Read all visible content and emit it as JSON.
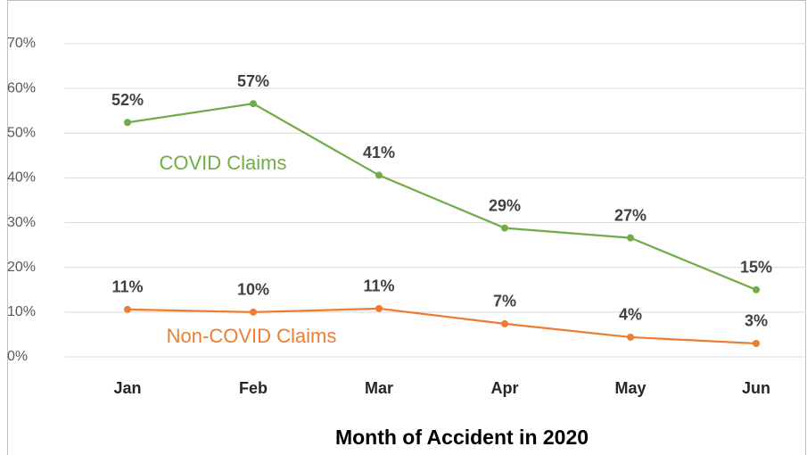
{
  "chart_data": {
    "type": "line",
    "x_label": "Month of Accident in 2020",
    "categories": [
      "Jan",
      "Feb",
      "Mar",
      "Apr",
      "May",
      "Jun"
    ],
    "series": [
      {
        "name": "COVID Claims",
        "color": "#70ad47",
        "values": [
          52.4,
          56.6,
          40.6,
          28.8,
          26.6,
          15
        ],
        "value_labels": [
          "52%",
          "57%",
          "41%",
          "29%",
          "27%",
          "15%"
        ]
      },
      {
        "name": "Non-COVID Claims",
        "color": "#ed7d31",
        "values": [
          10.6,
          10,
          10.8,
          7.4,
          4.4,
          3
        ],
        "value_labels": [
          "11%",
          "10%",
          "11%",
          "7%",
          "4%",
          "3%"
        ]
      }
    ],
    "ylim": [
      0,
      70
    ],
    "yticks": [
      {
        "value": 0,
        "label": "0%"
      },
      {
        "value": 10,
        "label": "10%"
      },
      {
        "value": 20,
        "label": "20%"
      },
      {
        "value": 30,
        "label": "30%"
      },
      {
        "value": 40,
        "label": "40%"
      },
      {
        "value": 50,
        "label": "50%"
      },
      {
        "value": 60,
        "label": "60%"
      },
      {
        "value": 70,
        "label": "70%"
      }
    ],
    "grid": true
  }
}
